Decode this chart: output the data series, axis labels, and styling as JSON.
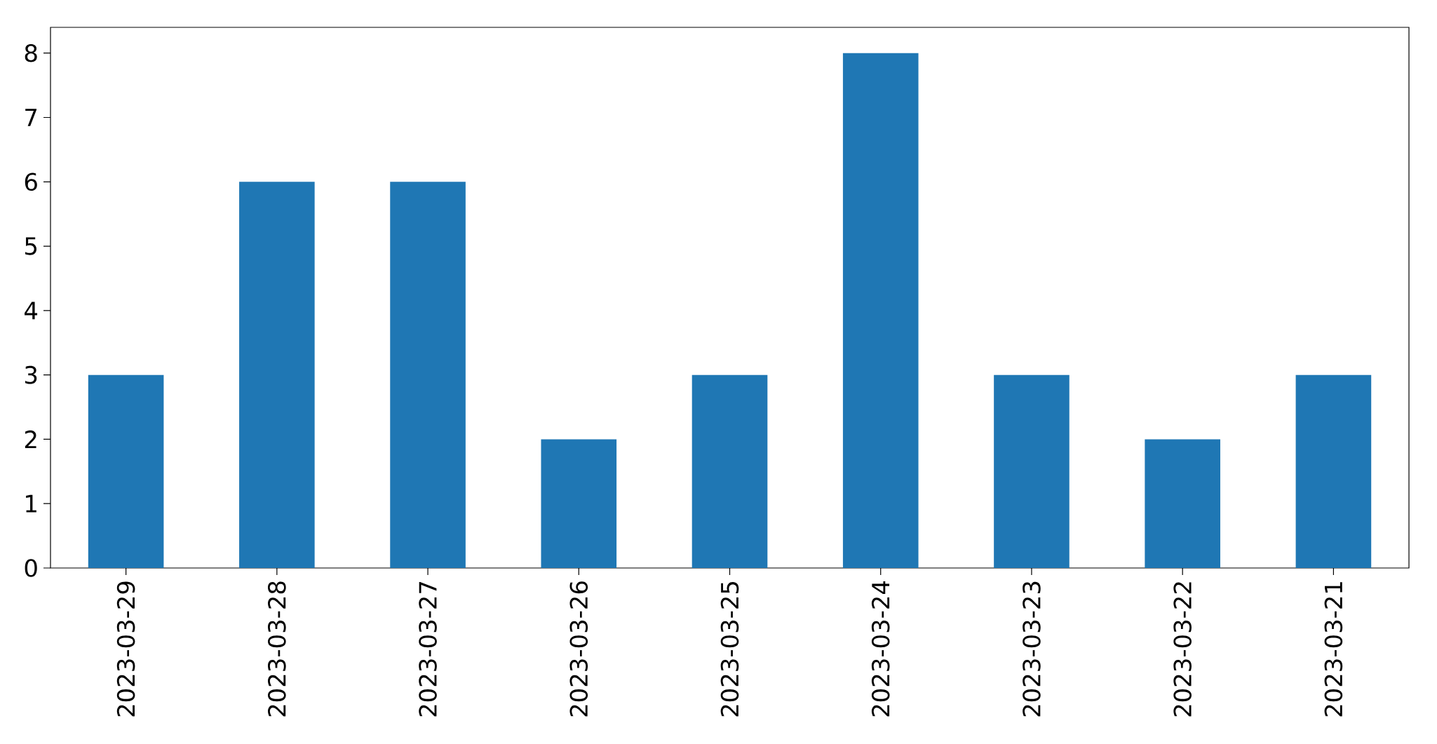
{
  "chart_data": {
    "type": "bar",
    "categories": [
      "2023-03-29",
      "2023-03-28",
      "2023-03-27",
      "2023-03-26",
      "2023-03-25",
      "2023-03-24",
      "2023-03-23",
      "2023-03-22",
      "2023-03-21"
    ],
    "values": [
      3,
      6,
      6,
      2,
      3,
      8,
      3,
      2,
      3
    ],
    "color": "#1f77b4",
    "ylim": [
      0,
      8.4
    ],
    "yticks": [
      0,
      1,
      2,
      3,
      4,
      5,
      6,
      7,
      8
    ]
  }
}
